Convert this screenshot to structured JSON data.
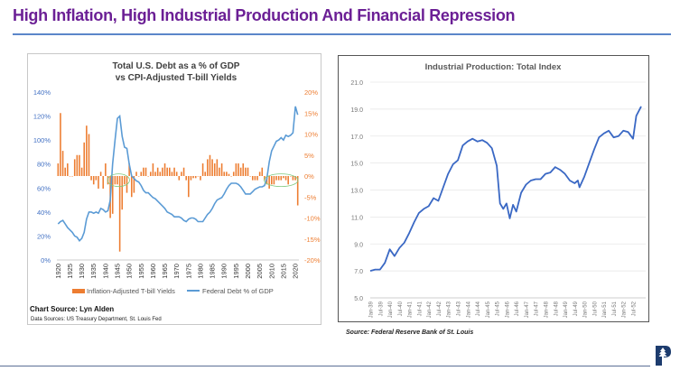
{
  "page": {
    "title": "High Inflation, High Industrial Production And Financial Repression",
    "source_right": "Source: Federal Reserve Bank of St. Louis",
    "logo": "P"
  },
  "colors": {
    "title": "#6b1f95",
    "debt": "#5b9bd5",
    "yield": "#ed7d31",
    "ip": "#3a68c4",
    "highlight": "#7fc97f"
  },
  "chart_data": [
    {
      "type": "bar+line",
      "title_line1": "Total U.S. Debt as a % of GDP",
      "title_line2": "vs CPI-Adjusted T-bill Yields",
      "left_ylim": [
        0,
        140
      ],
      "left_ticks": [
        "0%",
        "20%",
        "40%",
        "60%",
        "80%",
        "100%",
        "120%",
        "140%"
      ],
      "right_ylim": [
        -20,
        20
      ],
      "right_ticks": [
        "-20%",
        "-15%",
        "-10%",
        "-5%",
        "0%",
        "5%",
        "10%",
        "15%",
        "20%"
      ],
      "x_ticks": [
        "1920",
        "1925",
        "1930",
        "1935",
        "1940",
        "1945",
        "1950",
        "1955",
        "1960",
        "1965",
        "1970",
        "1975",
        "1980",
        "1985",
        "1990",
        "1995",
        "2000",
        "2005",
        "2010",
        "2015",
        "2020"
      ],
      "legend": {
        "yield": "Inflation-Adjusted T-bill Yields",
        "debt": "Federal Debt % of GDP",
        "placement": "bottom"
      },
      "chart_source": "Chart Source: Lyn Alden",
      "data_sources": "Data Sources: US Treasury Department, St. Louis Fed",
      "years_start": 1920,
      "debt_pct_gdp": [
        30,
        32,
        33,
        30,
        27,
        25,
        23,
        20,
        19,
        16,
        18,
        23,
        34,
        40,
        40,
        39,
        40,
        39,
        43,
        42,
        40,
        41,
        50,
        80,
        100,
        118,
        120,
        103,
        94,
        93,
        80,
        70,
        68,
        66,
        65,
        62,
        58,
        56,
        56,
        54,
        52,
        51,
        49,
        47,
        45,
        43,
        40,
        39,
        38,
        36,
        36,
        36,
        35,
        33,
        32,
        34,
        35,
        35,
        34,
        32,
        32,
        32,
        35,
        38,
        40,
        43,
        47,
        50,
        51,
        52,
        55,
        59,
        62,
        64,
        64,
        64,
        63,
        61,
        58,
        55,
        55,
        55,
        57,
        59,
        60,
        61,
        61,
        62,
        68,
        82,
        91,
        95,
        99,
        100,
        102,
        100,
        104,
        103,
        104,
        106,
        128,
        121
      ],
      "tbill_real_yield": [
        3,
        15,
        6,
        2,
        3,
        0,
        0,
        4,
        5,
        5,
        2,
        8,
        12,
        10,
        -1,
        -2,
        -1,
        -3,
        1,
        -3,
        3,
        -2,
        -10,
        -9,
        -2,
        -2,
        -18,
        -8,
        -2,
        -4,
        3,
        -5,
        -4,
        1,
        0,
        1,
        2,
        2,
        0,
        1,
        3,
        1,
        2,
        1,
        2,
        3,
        2,
        2,
        1,
        2,
        1,
        -1,
        1,
        2,
        -1,
        -5,
        -1,
        -0.5,
        -0.5,
        0,
        -1,
        3,
        1,
        4,
        5,
        4,
        3,
        4,
        2,
        3,
        1,
        1,
        0.5,
        0,
        1,
        3,
        3,
        2,
        3,
        2,
        2,
        0,
        -1,
        -1,
        -1,
        1,
        2,
        -1,
        -2,
        -3,
        -2,
        -2,
        -1,
        -1,
        -1,
        -0.5,
        -1,
        -2,
        0,
        -1,
        -1,
        -7
      ],
      "highlights": [
        [
          1942,
          1949
        ],
        [
          2008,
          2020
        ]
      ]
    },
    {
      "type": "line",
      "title": "Industrial Production: Total Index",
      "ylim": [
        5,
        21
      ],
      "y_ticks": [
        "5.0",
        "7.0",
        "9.0",
        "11.0",
        "13.0",
        "15.0",
        "17.0",
        "19.0",
        "21.0"
      ],
      "x_ticks": [
        "Jan-39",
        "Jul-39",
        "Jan-40",
        "Jul-40",
        "Jan-41",
        "Jul-41",
        "Jan-42",
        "Jul-42",
        "Jan-43",
        "Jul-43",
        "Jan-44",
        "Jul-44",
        "Jan-45",
        "Jul-45",
        "Jan-46",
        "Jul-46",
        "Jan-47",
        "Jul-47",
        "Jan-48",
        "Jul-48",
        "Jan-49",
        "Jul-49",
        "Jan-50",
        "Jul-50",
        "Jan-51",
        "Jul-51",
        "Jan-52",
        "Jul-52"
      ],
      "x_month_range": [
        0,
        167
      ],
      "points_month_value": [
        [
          0,
          7.0
        ],
        [
          3,
          7.1
        ],
        [
          6,
          7.1
        ],
        [
          9,
          7.6
        ],
        [
          12,
          8.6
        ],
        [
          15,
          8.1
        ],
        [
          18,
          8.7
        ],
        [
          21,
          9.1
        ],
        [
          24,
          9.8
        ],
        [
          27,
          10.6
        ],
        [
          30,
          11.3
        ],
        [
          33,
          11.6
        ],
        [
          36,
          11.8
        ],
        [
          39,
          12.4
        ],
        [
          42,
          12.2
        ],
        [
          45,
          13.2
        ],
        [
          48,
          14.2
        ],
        [
          51,
          14.9
        ],
        [
          54,
          15.2
        ],
        [
          57,
          16.3
        ],
        [
          60,
          16.6
        ],
        [
          63,
          16.8
        ],
        [
          66,
          16.6
        ],
        [
          69,
          16.7
        ],
        [
          72,
          16.5
        ],
        [
          75,
          16.1
        ],
        [
          78,
          14.8
        ],
        [
          80,
          12.0
        ],
        [
          82,
          11.6
        ],
        [
          84,
          12.0
        ],
        [
          86,
          10.9
        ],
        [
          88,
          11.9
        ],
        [
          90,
          11.4
        ],
        [
          93,
          12.8
        ],
        [
          96,
          13.4
        ],
        [
          99,
          13.7
        ],
        [
          102,
          13.8
        ],
        [
          105,
          13.8
        ],
        [
          108,
          14.2
        ],
        [
          111,
          14.3
        ],
        [
          114,
          14.7
        ],
        [
          117,
          14.5
        ],
        [
          120,
          14.2
        ],
        [
          123,
          13.7
        ],
        [
          126,
          13.5
        ],
        [
          128,
          13.7
        ],
        [
          129,
          13.2
        ],
        [
          132,
          14.0
        ],
        [
          135,
          15.0
        ],
        [
          138,
          16.0
        ],
        [
          141,
          16.9
        ],
        [
          144,
          17.2
        ],
        [
          147,
          17.4
        ],
        [
          150,
          16.9
        ],
        [
          153,
          17.0
        ],
        [
          156,
          17.4
        ],
        [
          159,
          17.3
        ],
        [
          162,
          16.8
        ],
        [
          164,
          18.5
        ],
        [
          167,
          19.2
        ]
      ]
    }
  ]
}
